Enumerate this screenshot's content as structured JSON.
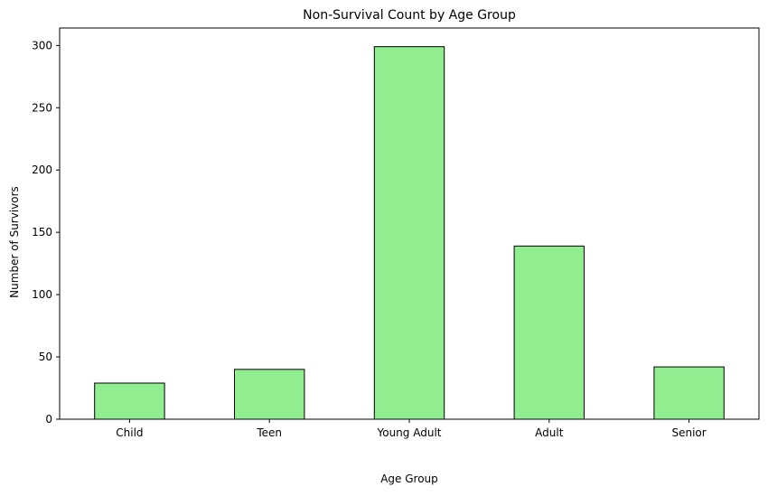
{
  "chart_data": {
    "type": "bar",
    "title": "Non-Survival Count by Age Group",
    "xlabel": "Age Group",
    "ylabel": "Number of Survivors",
    "categories": [
      "Child",
      "Teen",
      "Young Adult",
      "Adult",
      "Senior"
    ],
    "values": [
      29,
      40,
      299,
      139,
      42
    ],
    "ylim": [
      0,
      314
    ],
    "yticks": [
      0,
      50,
      100,
      150,
      200,
      250,
      300
    ],
    "grid": false,
    "legend": "none",
    "bar_color": "#90ee90",
    "edge_color": "#000000"
  }
}
